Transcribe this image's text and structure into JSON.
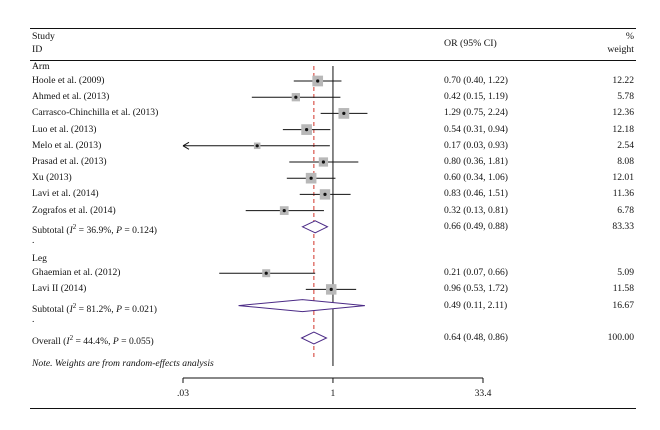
{
  "header": {
    "study_line1": "Study",
    "study_line2": "ID",
    "or_label": "OR (95% CI)",
    "weight_line1": "%",
    "weight_line2": "weight"
  },
  "note": "Note. Weights are from random-effects analysis",
  "dot": ".",
  "chart_data": {
    "type": "forest",
    "scale": "log",
    "xlim": [
      0.03,
      33.4
    ],
    "xticks": [
      ".03",
      "1",
      "33.4"
    ],
    "reference_line": 1,
    "overall_line": 0.64,
    "groups": [
      {
        "name": "Arm",
        "studies": [
          {
            "label": "Hoole et al. (2009)",
            "or": 0.7,
            "lo": 0.4,
            "hi": 1.22,
            "ci_text": "0.70 (0.40, 1.22)",
            "weight": 12.22,
            "weight_text": "12.22"
          },
          {
            "label": "Ahmed et al. (2013)",
            "or": 0.42,
            "lo": 0.15,
            "hi": 1.19,
            "ci_text": "0.42 (0.15, 1.19)",
            "weight": 5.78,
            "weight_text": "5.78"
          },
          {
            "label": "Carrasco-Chinchilla et al. (2013)",
            "or": 1.29,
            "lo": 0.75,
            "hi": 2.24,
            "ci_text": "1.29 (0.75, 2.24)",
            "weight": 12.36,
            "weight_text": "12.36"
          },
          {
            "label": "Luo et al. (2013)",
            "or": 0.54,
            "lo": 0.31,
            "hi": 0.94,
            "ci_text": "0.54 (0.31, 0.94)",
            "weight": 12.18,
            "weight_text": "12.18"
          },
          {
            "label": "Melo et al. (2013)",
            "or": 0.17,
            "lo": 0.03,
            "hi": 0.93,
            "ci_text": "0.17 (0.03, 0.93)",
            "weight": 2.54,
            "weight_text": "2.54",
            "arrow_left": true
          },
          {
            "label": "Prasad et al. (2013)",
            "or": 0.8,
            "lo": 0.36,
            "hi": 1.81,
            "ci_text": "0.80 (0.36, 1.81)",
            "weight": 8.08,
            "weight_text": "8.08"
          },
          {
            "label": "Xu (2013)",
            "or": 0.6,
            "lo": 0.34,
            "hi": 1.06,
            "ci_text": "0.60 (0.34, 1.06)",
            "weight": 12.01,
            "weight_text": "12.01"
          },
          {
            "label": "Lavi et al. (2014)",
            "or": 0.83,
            "lo": 0.46,
            "hi": 1.51,
            "ci_text": "0.83 (0.46, 1.51)",
            "weight": 11.36,
            "weight_text": "11.36"
          },
          {
            "label": "Zografos et al. (2014)",
            "or": 0.32,
            "lo": 0.13,
            "hi": 0.81,
            "ci_text": "0.32 (0.13, 0.81)",
            "weight": 6.78,
            "weight_text": "6.78"
          }
        ],
        "subtotal": {
          "label_pre": "Subtotal (",
          "i2": "I",
          "sup": "2",
          "label_post": " = 36.9%, ",
          "p": "P",
          "p_post": " = 0.124)",
          "or": 0.66,
          "lo": 0.49,
          "hi": 0.88,
          "ci_text": "0.66 (0.49, 0.88)",
          "weight_text": "83.33"
        }
      },
      {
        "name": "Leg",
        "studies": [
          {
            "label": "Ghaemian et al. (2012)",
            "or": 0.21,
            "lo": 0.07,
            "hi": 0.66,
            "ci_text": "0.21 (0.07, 0.66)",
            "weight": 5.09,
            "weight_text": "5.09"
          },
          {
            "label": "Lavi II (2014)",
            "or": 0.96,
            "lo": 0.53,
            "hi": 1.72,
            "ci_text": "0.96 (0.53, 1.72)",
            "weight": 11.58,
            "weight_text": "11.58"
          }
        ],
        "subtotal": {
          "label_pre": "Subtotal (",
          "i2": "I",
          "sup": "2",
          "label_post": " = 81.2%, ",
          "p": "P",
          "p_post": " = 0.021)",
          "or": 0.49,
          "lo": 0.11,
          "hi": 2.11,
          "ci_text": "0.49 (0.11, 2.11)",
          "weight_text": "16.67"
        }
      }
    ],
    "overall": {
      "label_pre": "Overall (",
      "i2": "I",
      "sup": "2",
      "label_post": " = 44.4%, ",
      "p": "P",
      "p_post": " = 0.055)",
      "or": 0.64,
      "lo": 0.48,
      "hi": 0.86,
      "ci_text": "0.64 (0.48, 0.86)",
      "weight_text": "100.00"
    },
    "colors": {
      "box": "#b8b8b8",
      "diamond": "#4b2a86",
      "ref_dash": "#d2342a",
      "line": "#111111"
    }
  }
}
